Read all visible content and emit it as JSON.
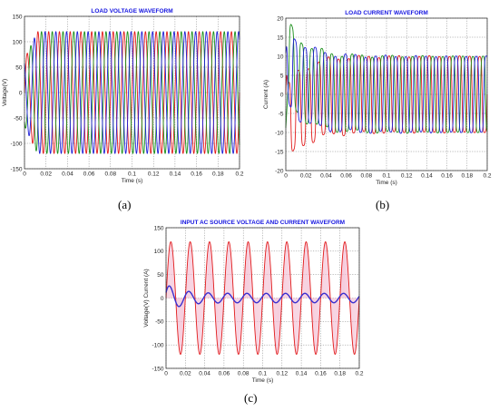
{
  "captions": {
    "a": "(a)",
    "b": "(b)",
    "c": "(c)"
  },
  "chart_data": [
    {
      "id": "a",
      "type": "line",
      "title": "LOAD VOLTAGE WAVEFORM",
      "xlabel": "Time (s)",
      "ylabel": "Voltage(V)",
      "xlim": [
        0,
        0.2
      ],
      "ylim": [
        -150,
        150
      ],
      "xticks": [
        "0",
        "0.02",
        "0.04",
        "0.06",
        "0.08",
        "0.1",
        "0.12",
        "0.14",
        "0.16",
        "0.18",
        "0.2"
      ],
      "yticks": [
        "-150",
        "-100",
        "-50",
        "0",
        "50",
        "100",
        "150"
      ],
      "grid": true,
      "colors": [
        "#e21b1b",
        "#1a8f1a",
        "#1f1fd6"
      ],
      "series": [
        {
          "frequency_hz": 100,
          "phase_deg": 0,
          "steady_amplitude": 120,
          "peak_startup": 120
        },
        {
          "frequency_hz": 100,
          "phase_deg": -120,
          "steady_amplitude": 120,
          "peak_startup": 120
        },
        {
          "frequency_hz": 100,
          "phase_deg": 120,
          "steady_amplitude": 120,
          "peak_startup": 120
        }
      ]
    },
    {
      "id": "b",
      "type": "line",
      "title": "LOAD CURRENT WAVEFORM",
      "xlabel": "Time (s)",
      "ylabel": "Current (A)",
      "xlim": [
        0,
        0.2
      ],
      "ylim": [
        -20,
        20
      ],
      "xticks": [
        "0",
        "0.02",
        "0.04",
        "0.06",
        "0.08",
        "0.1",
        "0.12",
        "0.14",
        "0.16",
        "0.18",
        "0.2"
      ],
      "yticks": [
        "-20",
        "-15",
        "-10",
        "-5",
        "0",
        "5",
        "10",
        "15",
        "20"
      ],
      "grid": true,
      "colors": [
        "#e21b1b",
        "#1a8f1a",
        "#1f1fd6"
      ],
      "series": [
        {
          "frequency_hz": 100,
          "phase_deg": 0,
          "steady_amplitude": 10,
          "peak_startup": -16
        },
        {
          "frequency_hz": 100,
          "phase_deg": -120,
          "steady_amplitude": 10,
          "peak_startup": 18
        },
        {
          "frequency_hz": 100,
          "phase_deg": 120,
          "steady_amplitude": 10,
          "peak_startup": 15
        }
      ]
    },
    {
      "id": "c",
      "type": "line",
      "title": "INPUT AC SOURCE VOLTAGE AND CURRENT WAVEFORM",
      "xlabel": "Time (s)",
      "ylabel": "Voltage(V) Current (A)",
      "xlim": [
        0,
        0.2
      ],
      "ylim": [
        -150,
        150
      ],
      "xticks": [
        "0",
        "0.02",
        "0.04",
        "0.06",
        "0.08",
        "0.1",
        "0.12",
        "0.14",
        "0.16",
        "0.18",
        "0.2"
      ],
      "yticks": [
        "-150",
        "-100",
        "-50",
        "0",
        "50",
        "100",
        "150"
      ],
      "grid": true,
      "colors": [
        "#e21b1b",
        "#3a2fd0",
        "#f2b8cf"
      ],
      "series": [
        {
          "frequency_hz": 50,
          "steady_amplitude": 120
        },
        {
          "frequency_hz": 50,
          "steady_amplitude": 10,
          "peak_startup": 30
        }
      ]
    }
  ]
}
